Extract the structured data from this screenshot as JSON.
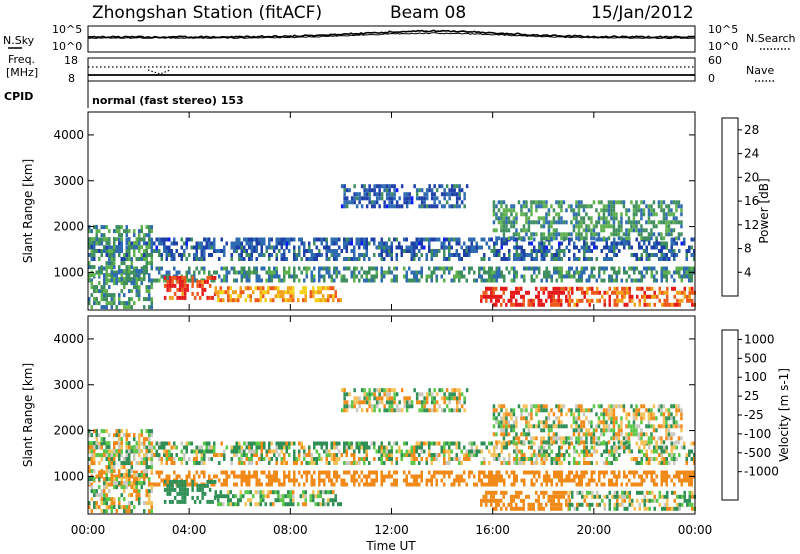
{
  "header": {
    "station": "Zhongshan Station (fitACF)",
    "beam": "Beam 08",
    "date": "15/Jan/2012"
  },
  "top_panels": {
    "nsky_label": "N.Sky",
    "nsearch_label": "N.Search",
    "nsky_ticks": [
      "10^5",
      "10^0"
    ],
    "nsearch_ticks": [
      "10^5",
      "10^0"
    ],
    "freq_label_1": "Freq.",
    "freq_label_2": "[MHz]",
    "freq_ticks": [
      "18",
      "8"
    ],
    "nave_label": "Nave",
    "nave_ticks": [
      "60",
      "0"
    ],
    "cpid_label": "CPID",
    "cpid_text": "normal (fast stereo) 153"
  },
  "colors": {
    "power": [
      "#0a1aff",
      "#1d3fa8",
      "#2e6bb0",
      "#3e8e5e",
      "#5fb04f",
      "#f2d21a",
      "#f2a21a",
      "#ee5a1e",
      "#e51a1a"
    ],
    "velocity": [
      "#e51a1a",
      "#ee5a1e",
      "#f28a1a",
      "#f5c25a",
      "#c8c8c0",
      "#5bc84a",
      "#2f8f55",
      "#1d50a8",
      "#1a2bd0"
    ]
  },
  "chart_data": [
    {
      "type": "heatmap",
      "name": "Power",
      "ylabel": "Slant Range [km]",
      "ylim": [
        180,
        4500
      ],
      "y_ticks": [
        1000,
        2000,
        3000,
        4000
      ],
      "xlim": [
        0,
        24
      ],
      "colorbar_label": "Power [dB]",
      "colorbar_ticks": [
        4,
        8,
        12,
        16,
        20,
        24,
        28
      ],
      "colorbar_range": [
        0,
        30
      ],
      "regions": [
        {
          "t": [
            0,
            24
          ],
          "r": [
            1250,
            1450
          ],
          "level": 8
        },
        {
          "t": [
            0,
            24
          ],
          "r": [
            780,
            1050
          ],
          "level": 11
        },
        {
          "t": [
            0,
            24
          ],
          "r": [
            1500,
            1700
          ],
          "level": 7
        },
        {
          "t": [
            0,
            2.5
          ],
          "r": [
            200,
            2000
          ],
          "level": 12
        },
        {
          "t": [
            3,
            5
          ],
          "r": [
            400,
            900
          ],
          "level": 27
        },
        {
          "t": [
            5,
            10
          ],
          "r": [
            350,
            650
          ],
          "level": 22
        },
        {
          "t": [
            10,
            15
          ],
          "r": [
            2400,
            2900
          ],
          "level": 7
        },
        {
          "t": [
            15.5,
            19
          ],
          "r": [
            250,
            650
          ],
          "level": 28
        },
        {
          "t": [
            19,
            24
          ],
          "r": [
            250,
            650
          ],
          "level": 25
        },
        {
          "t": [
            16,
            23.5
          ],
          "r": [
            1700,
            2500
          ],
          "level": 12
        }
      ]
    },
    {
      "type": "heatmap",
      "name": "Velocity",
      "ylabel": "Slant Range [km]",
      "xlabel": "Time UT",
      "ylim": [
        180,
        4500
      ],
      "y_ticks": [
        1000,
        2000,
        3000,
        4000
      ],
      "xlim": [
        0,
        24
      ],
      "x_ticks": [
        "00:00",
        "04:00",
        "08:00",
        "12:00",
        "16:00",
        "20:00",
        "00:00"
      ],
      "colorbar_label": "Velocity [m s-1]",
      "colorbar_ticks": [
        1000,
        500,
        100,
        25,
        -25,
        -100,
        -500,
        -1000
      ],
      "regions": [
        {
          "t": [
            0,
            24
          ],
          "r": [
            1250,
            1450
          ],
          "vel": 0
        },
        {
          "t": [
            0,
            9.5
          ],
          "r": [
            300,
            2000
          ],
          "vel": -300
        },
        {
          "t": [
            0,
            2.5
          ],
          "r": [
            200,
            600
          ],
          "vel": 60
        },
        {
          "t": [
            10,
            15
          ],
          "r": [
            2400,
            2900
          ],
          "vel": 0
        },
        {
          "t": [
            15.5,
            24
          ],
          "r": [
            200,
            1200
          ],
          "vel": 300
        },
        {
          "t": [
            16,
            23.5
          ],
          "r": [
            1700,
            2500
          ],
          "vel": 80
        }
      ]
    }
  ]
}
